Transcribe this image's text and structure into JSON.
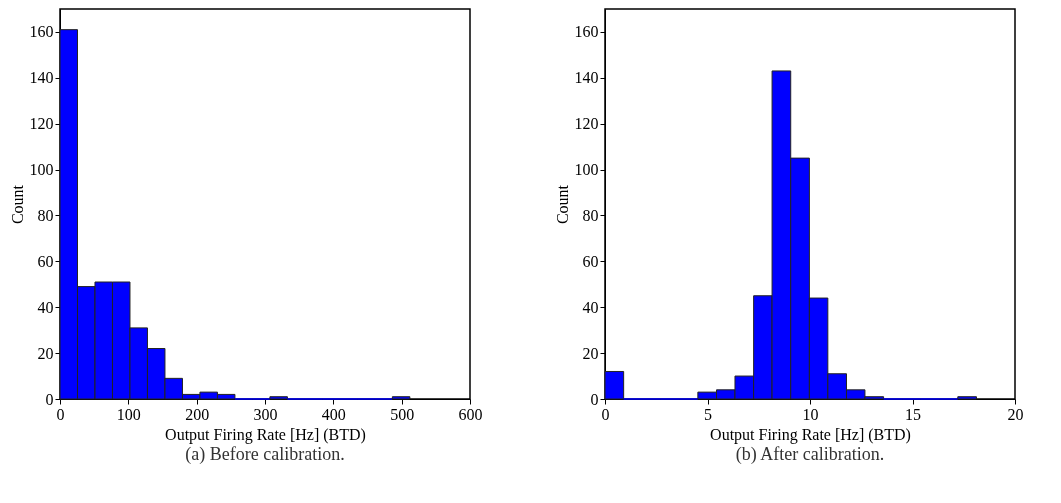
{
  "chart_data": [
    {
      "type": "histogram",
      "title": "(a) Before calibration.",
      "xlabel": "Output Firing Rate [Hz] (BTD)",
      "ylabel": "Count",
      "color": "#0000ff",
      "bins": [
        0,
        25.6,
        51.2,
        76.8,
        102.4,
        128,
        153.6,
        179.2,
        204.8,
        230.4,
        256,
        281.6,
        307.2,
        332.8,
        358.4,
        384,
        409.6,
        435.2,
        460.8,
        486.4,
        512
      ],
      "values": [
        161,
        49,
        51,
        51,
        31,
        22,
        9,
        2,
        3,
        2,
        0,
        0,
        1,
        0,
        0,
        0,
        0,
        0,
        0,
        1
      ],
      "xlim": [
        0,
        600
      ],
      "xticks": [
        0,
        100,
        200,
        300,
        400,
        500,
        600
      ],
      "ylim": [
        0,
        170
      ],
      "yticks": [
        0,
        20,
        40,
        60,
        80,
        100,
        120,
        140,
        160
      ]
    },
    {
      "type": "histogram",
      "title": "(b) After calibration.",
      "xlabel": "Output Firing Rate [Hz] (BTD)",
      "ylabel": "Count",
      "color": "#0000ff",
      "bins": [
        0,
        0.91,
        1.81,
        2.72,
        3.62,
        4.53,
        5.44,
        6.34,
        7.25,
        8.15,
        9.06,
        9.97,
        10.87,
        11.78,
        12.68,
        13.59,
        14.5,
        15.4,
        16.31,
        17.21,
        18.12
      ],
      "values": [
        12,
        0,
        0,
        0,
        0,
        3,
        4,
        10,
        45,
        143,
        105,
        44,
        11,
        4,
        1,
        0,
        0,
        0,
        0,
        1
      ],
      "xlim": [
        0,
        20
      ],
      "xticks": [
        0,
        5,
        10,
        15,
        20
      ],
      "ylim": [
        0,
        170
      ],
      "yticks": [
        0,
        20,
        40,
        60,
        80,
        100,
        120,
        140,
        160
      ]
    }
  ]
}
